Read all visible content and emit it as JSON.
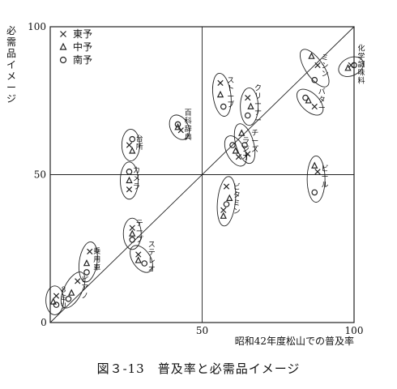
{
  "chart_data": {
    "type": "scatter",
    "title": "図３-13　普及率と必需品イメージ",
    "xlabel": "昭和42年度松山での普及率",
    "ylabel": "必需品イメージ",
    "xlim": [
      0,
      100
    ],
    "ylim": [
      0,
      100
    ],
    "x_ticks": [
      "0",
      "50",
      "100"
    ],
    "y_ticks": [
      "50",
      "100"
    ],
    "grid": "center-lines",
    "diagonal": true,
    "legend": {
      "position": "top-left",
      "entries": [
        {
          "marker": "x",
          "label": "東予",
          "glyph": "×"
        },
        {
          "marker": "triangle",
          "label": "中予",
          "glyph": "△"
        },
        {
          "marker": "circle",
          "label": "南予",
          "glyph": "○"
        }
      ]
    },
    "groups": [
      {
        "label": "ミシン",
        "points": [
          {
            "m": "triangle",
            "x": 86,
            "y": 90
          },
          {
            "m": "circle",
            "x": 87,
            "y": 82
          },
          {
            "m": "x",
            "x": 88,
            "y": 87
          }
        ]
      },
      {
        "label": "化学調味料",
        "points": [
          {
            "m": "triangle",
            "x": 98,
            "y": 86
          },
          {
            "m": "x",
            "x": 99,
            "y": 87
          },
          {
            "m": "circle",
            "x": 100,
            "y": 87
          }
        ]
      },
      {
        "label": "バター",
        "points": [
          {
            "m": "circle",
            "x": 84,
            "y": 76
          },
          {
            "m": "triangle",
            "x": 85,
            "y": 75
          },
          {
            "m": "x",
            "x": 87,
            "y": 73
          }
        ]
      },
      {
        "label": "ストーブ",
        "points": [
          {
            "m": "x",
            "x": 56,
            "y": 81
          },
          {
            "m": "triangle",
            "x": 56,
            "y": 77
          },
          {
            "m": "circle",
            "x": 57,
            "y": 73
          }
        ]
      },
      {
        "label": "クリーナー",
        "points": [
          {
            "m": "x",
            "x": 65,
            "y": 76
          },
          {
            "m": "triangle",
            "x": 66,
            "y": 73
          },
          {
            "m": "circle",
            "x": 65,
            "y": 70
          }
        ]
      },
      {
        "label": "チーズ",
        "points": [
          {
            "m": "triangle",
            "x": 63,
            "y": 64
          },
          {
            "m": "circle",
            "x": 64,
            "y": 60
          },
          {
            "m": "x",
            "x": 65,
            "y": 57
          }
        ]
      },
      {
        "label": "ラジオ",
        "points": [
          {
            "m": "circle",
            "x": 60,
            "y": 60
          },
          {
            "m": "triangle",
            "x": 61,
            "y": 58
          },
          {
            "m": "x",
            "x": 62,
            "y": 56
          }
        ]
      },
      {
        "label": "台所",
        "points": [
          {
            "m": "circle",
            "x": 27,
            "y": 62
          },
          {
            "m": "x",
            "x": 26,
            "y": 60
          },
          {
            "m": "triangle",
            "x": 27,
            "y": 58
          }
        ]
      },
      {
        "label": "百科辞典",
        "points": [
          {
            "m": "circle",
            "x": 42,
            "y": 67
          },
          {
            "m": "triangle",
            "x": 42,
            "y": 66
          },
          {
            "m": "x",
            "x": 43,
            "y": 65
          }
        ]
      },
      {
        "label": "カメラ",
        "points": [
          {
            "m": "circle",
            "x": 26,
            "y": 51
          },
          {
            "m": "triangle",
            "x": 26,
            "y": 48
          },
          {
            "m": "x",
            "x": 26,
            "y": 45
          }
        ]
      },
      {
        "label": "ビタミン",
        "points": [
          {
            "m": "x",
            "x": 58,
            "y": 46
          },
          {
            "m": "triangle",
            "x": 59,
            "y": 42
          },
          {
            "m": "circle",
            "x": 58,
            "y": 40
          },
          {
            "m": "x",
            "x": 57,
            "y": 38
          },
          {
            "m": "triangle",
            "x": 57,
            "y": 36
          }
        ]
      },
      {
        "label": "ビール",
        "points": [
          {
            "m": "triangle",
            "x": 87,
            "y": 53
          },
          {
            "m": "x",
            "x": 88,
            "y": 51
          },
          {
            "m": "circle",
            "x": 87,
            "y": 44
          }
        ]
      },
      {
        "label": "テープ",
        "points": [
          {
            "m": "x",
            "x": 27,
            "y": 32
          },
          {
            "m": "triangle",
            "x": 27,
            "y": 30
          },
          {
            "m": "circle",
            "x": 27,
            "y": 28
          }
        ]
      },
      {
        "label": "ステレオ",
        "points": [
          {
            "m": "x",
            "x": 29,
            "y": 23
          },
          {
            "m": "triangle",
            "x": 29,
            "y": 21
          },
          {
            "m": "circle",
            "x": 31,
            "y": 20
          }
        ]
      },
      {
        "label": "乗用車",
        "points": [
          {
            "m": "x",
            "x": 13,
            "y": 24
          },
          {
            "m": "triangle",
            "x": 12,
            "y": 20
          },
          {
            "m": "circle",
            "x": 12,
            "y": 17
          }
        ]
      },
      {
        "label": "ピアノ",
        "points": [
          {
            "m": "x",
            "x": 9,
            "y": 14
          },
          {
            "m": "triangle",
            "x": 7,
            "y": 10
          },
          {
            "m": "circle",
            "x": 6,
            "y": 8
          }
        ]
      },
      {
        "label": "8ミリ",
        "points": [
          {
            "m": "x",
            "x": 2,
            "y": 9
          },
          {
            "m": "triangle",
            "x": 1,
            "y": 7
          },
          {
            "m": "circle",
            "x": 2,
            "y": 6
          }
        ]
      }
    ]
  }
}
